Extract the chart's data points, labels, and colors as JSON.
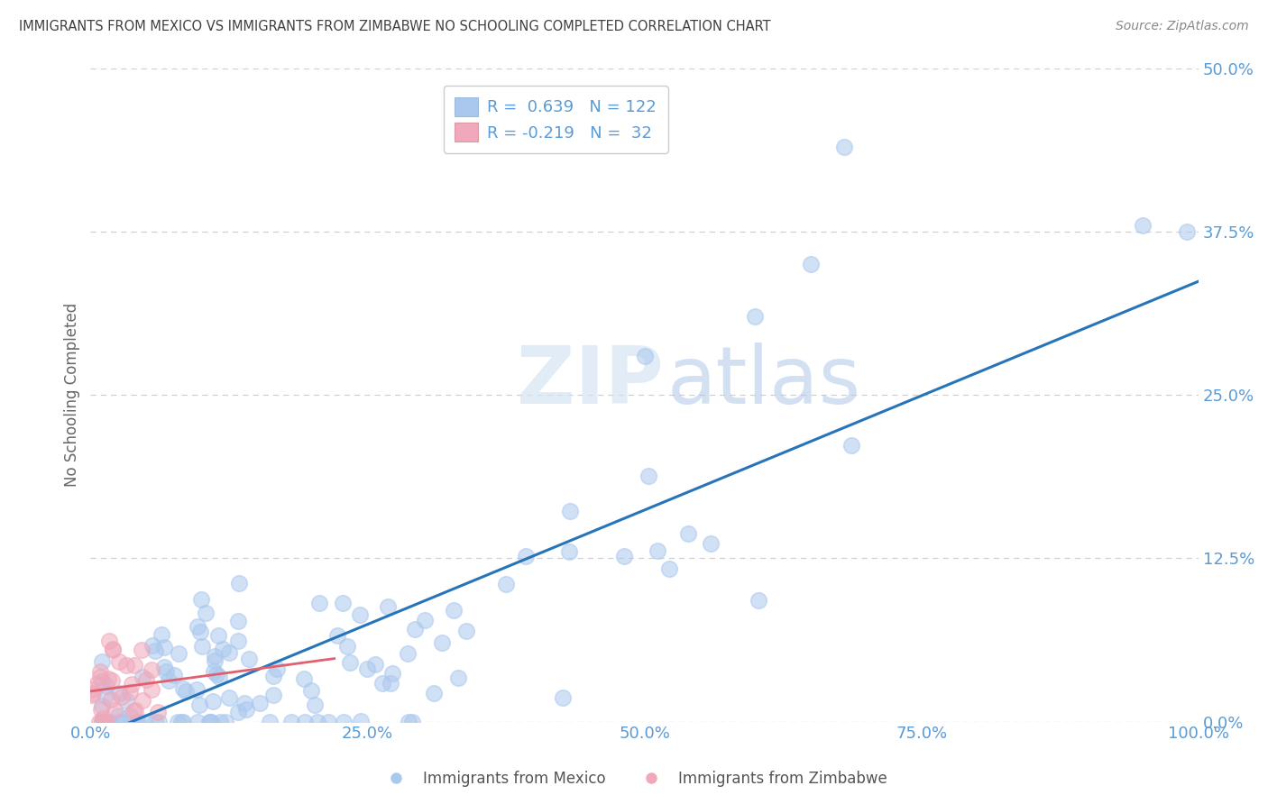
{
  "title": "IMMIGRANTS FROM MEXICO VS IMMIGRANTS FROM ZIMBABWE NO SCHOOLING COMPLETED CORRELATION CHART",
  "source": "Source: ZipAtlas.com",
  "ylabel": "No Schooling Completed",
  "legend_mexico": "Immigrants from Mexico",
  "legend_zimbabwe": "Immigrants from Zimbabwe",
  "R_mexico": 0.639,
  "N_mexico": 122,
  "R_zimbabwe": -0.219,
  "N_zimbabwe": 32,
  "mexico_color": "#aac8ee",
  "zimbabwe_color": "#f0a8ba",
  "trend_mexico_color": "#2874b8",
  "trend_zimbabwe_color": "#e06070",
  "xlim": [
    0.0,
    1.0
  ],
  "ylim": [
    0.0,
    0.5
  ],
  "yticks": [
    0.0,
    0.125,
    0.25,
    0.375,
    0.5
  ],
  "ytick_labels": [
    "0.0%",
    "12.5%",
    "25.0%",
    "37.5%",
    "50.0%"
  ],
  "xticks": [
    0.0,
    0.25,
    0.5,
    0.75,
    1.0
  ],
  "xtick_labels": [
    "0.0%",
    "25.0%",
    "50.0%",
    "75.0%",
    "100.0%"
  ],
  "watermark_zip": "ZIP",
  "watermark_atlas": "atlas",
  "background_color": "#ffffff",
  "grid_color": "#d0d0d0",
  "tick_color": "#5b9bd5",
  "title_color": "#404040"
}
